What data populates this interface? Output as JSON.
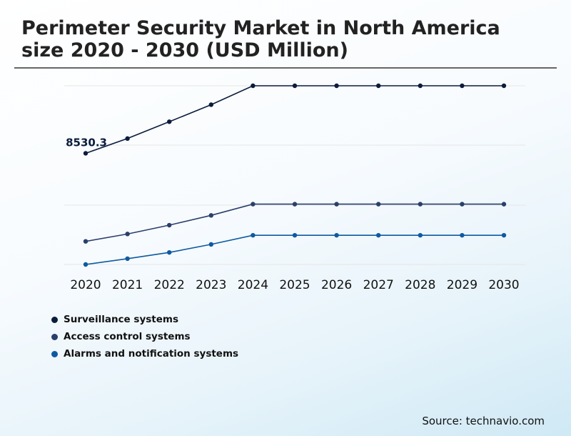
{
  "title": "Perimeter Security Market in North America size 2020 - 2030 (USD Million)",
  "source": "Source: technavio.com",
  "colors": {
    "surveillance": "#0b1c3b",
    "access": "#2b3f6b",
    "alarms": "#0e5aa1",
    "gridline": "#e6e6e6"
  },
  "chart_data": {
    "type": "line",
    "title": "Perimeter Security Market in North America size 2020 - 2030 (USD Million)",
    "xlabel": "",
    "ylabel": "",
    "categories": [
      "2020",
      "2021",
      "2022",
      "2023",
      "2024",
      "2025",
      "2026",
      "2027",
      "2028",
      "2029",
      "2030"
    ],
    "series": [
      {
        "name": "Surveillance systems",
        "color": "#0b1c3b",
        "values": [
          8530.3,
          9450,
          10500,
          11560,
          12740,
          12740,
          12740,
          12740,
          12740,
          12740,
          12740
        ]
      },
      {
        "name": "Access control systems",
        "color": "#2b3f6b",
        "values": [
          3040,
          3500,
          4050,
          4660,
          5360,
          5360,
          5360,
          5360,
          5360,
          5360,
          5360
        ]
      },
      {
        "name": "Alarms and notification systems",
        "color": "#0e5aa1",
        "values": [
          1600,
          1960,
          2350,
          2850,
          3420,
          3420,
          3420,
          3420,
          3420,
          3420,
          3420
        ]
      }
    ],
    "annotations": [
      {
        "series": 0,
        "index": 0,
        "label": "8530.3"
      }
    ],
    "ylim": [
      1600,
      12740
    ],
    "grid": true,
    "legend": "bottom-left"
  }
}
